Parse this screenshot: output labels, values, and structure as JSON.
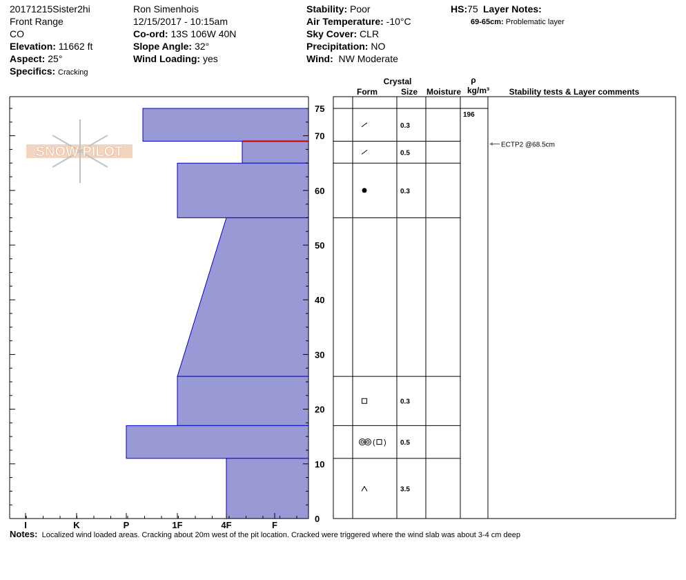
{
  "header": {
    "col1": {
      "pit_name": "20171215Sister2hi",
      "range": "Front Range",
      "state": "CO",
      "elevation_label": "Elevation:",
      "elevation": "11662 ft",
      "aspect_label": "Aspect:",
      "aspect": "25°",
      "specifics_label": "Specifics:",
      "specifics": "Cracking"
    },
    "col2": {
      "observer": "Ron Simenhois",
      "datetime": "12/15/2017 - 10:15am",
      "coord_label": "Co-ord:",
      "coord": "13S 106W 40N",
      "slope_label": "Slope Angle:",
      "slope": "32°",
      "wind_loading_label": "Wind Loading:",
      "wind_loading": "yes"
    },
    "col3": {
      "stability_label": "Stability:",
      "stability": "Poor",
      "air_temp_label": "Air Temperature:",
      "air_temp": "-10°C",
      "sky_label": "Sky Cover:",
      "sky": "CLR",
      "precip_label": "Precipitation:",
      "precip": "NO",
      "wind_label": "Wind:",
      "wind": "NW Moderate"
    },
    "hs_label": "HS:",
    "hs": "75",
    "layer_notes_label": "Layer Notes:",
    "layer_notes": [
      {
        "range": "69-65cm:",
        "text": "Problematic layer"
      }
    ]
  },
  "logo_text": "SNOW PILOT",
  "table_headers": {
    "crystal": "Crystal",
    "form": "Form",
    "size": "Size",
    "moisture": "Moisture",
    "rho": "ρ",
    "density_unit": "kg/m³",
    "comments": "Stability tests & Layer comments"
  },
  "notes": {
    "label": "Notes:",
    "text": "Localized wind loaded areas. Cracking about 20m west of the pit location. Cracked were triggered where the wind slab was about 3-4 cm deep"
  },
  "chart_data": {
    "type": "snow-profile",
    "y_axis": {
      "unit": "cm",
      "range": [
        0,
        75
      ],
      "ticks": [
        0,
        10,
        20,
        30,
        40,
        50,
        60,
        70,
        75
      ]
    },
    "hardness_axis": {
      "ticks": [
        "I",
        "K",
        "P",
        "1F",
        "4F",
        "F"
      ]
    },
    "bar_color": "#9999d6",
    "bar_edge_color": "#0000cc",
    "marker_color": "#cc0000",
    "layers": [
      {
        "top": 75,
        "bottom": 69,
        "hardness_top": "P+",
        "hardness_bottom": "P+",
        "form": "decomposing",
        "size": "0.3"
      },
      {
        "top": 69,
        "bottom": 65,
        "hardness_top": "4F-",
        "hardness_bottom": "4F-",
        "form": "decomposing",
        "size": "0.5"
      },
      {
        "top": 65,
        "bottom": 55,
        "hardness_top": "1F",
        "hardness_bottom": "1F",
        "form": "graupel",
        "size": "0.3"
      },
      {
        "top": 55,
        "bottom": 26,
        "hardness_top": "4F",
        "hardness_bottom": "1F",
        "form": "",
        "size": ""
      },
      {
        "top": 26,
        "bottom": 17,
        "hardness_top": "1F",
        "hardness_bottom": "1F",
        "form": "faceted",
        "size": "0.3"
      },
      {
        "top": 17,
        "bottom": 11,
        "hardness_top": "P",
        "hardness_bottom": "P",
        "form": "rounded(faceted)",
        "size": "0.5"
      },
      {
        "top": 11,
        "bottom": 0,
        "hardness_top": "4F",
        "hardness_bottom": "4F",
        "form": "depth-hoar",
        "size": "3.5"
      }
    ],
    "problem_marker_depth": 69,
    "density": [
      {
        "depth": 75,
        "value": "196"
      }
    ],
    "stability_tests": [
      {
        "depth": 68.5,
        "text": "ECTP2 @68.5cm"
      }
    ]
  }
}
